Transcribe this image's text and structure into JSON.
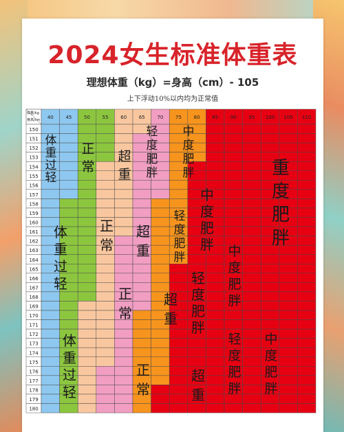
{
  "title": "2024女生标准体重表",
  "formula": "理想体重（kg）=身高（cm）- 105",
  "note": "上下浮动10%以内均为正常值",
  "header": {
    "weight_label": "体重/kg",
    "height_label": "身高/cm"
  },
  "weights": [
    40,
    45,
    50,
    55,
    60,
    65,
    70,
    75,
    80,
    85,
    90,
    95,
    100,
    105,
    110
  ],
  "heights": [
    150,
    151,
    152,
    153,
    154,
    155,
    156,
    157,
    158,
    159,
    160,
    161,
    162,
    163,
    164,
    165,
    166,
    167,
    168,
    169,
    170,
    171,
    172,
    173,
    174,
    175,
    176,
    177,
    178,
    179,
    180
  ],
  "colors": {
    "blue": "#8ec8f0",
    "green": "#8cc63f",
    "peach": "#f9c79f",
    "pink": "#f19ec2",
    "orange": "#f7941d",
    "red": "#e60012"
  },
  "category_labels": {
    "underweight": "体重过轻",
    "normal": "正常",
    "overweight": "超重",
    "mild_obese": "轻度肥胖",
    "moderate_obese": "中度肥胖",
    "severe_obese": "重度肥胖"
  }
}
